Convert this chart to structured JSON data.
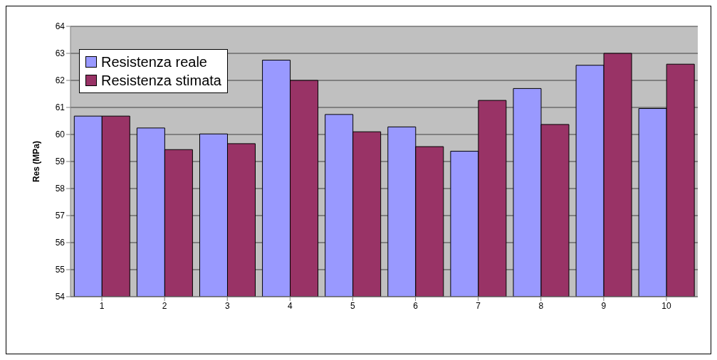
{
  "chart_data": {
    "type": "bar",
    "ylabel": "Res (MPa)",
    "categories": [
      "1",
      "2",
      "3",
      "4",
      "5",
      "6",
      "7",
      "8",
      "9",
      "10"
    ],
    "series": [
      {
        "name": "Resistenza reale",
        "color": "#9999ff",
        "values": [
          60.68,
          60.24,
          60.02,
          62.75,
          60.74,
          60.28,
          59.38,
          61.7,
          62.56,
          60.96
        ]
      },
      {
        "name": "Resistenza stimata",
        "color": "#993366",
        "values": [
          60.68,
          59.44,
          59.66,
          62.0,
          60.1,
          59.55,
          61.26,
          60.37,
          63.0,
          62.6
        ]
      }
    ],
    "ylim": [
      54,
      64
    ],
    "yticks": [
      54,
      55,
      56,
      57,
      58,
      59,
      60,
      61,
      62,
      63,
      64
    ],
    "grid": "y",
    "legend": "top left"
  }
}
